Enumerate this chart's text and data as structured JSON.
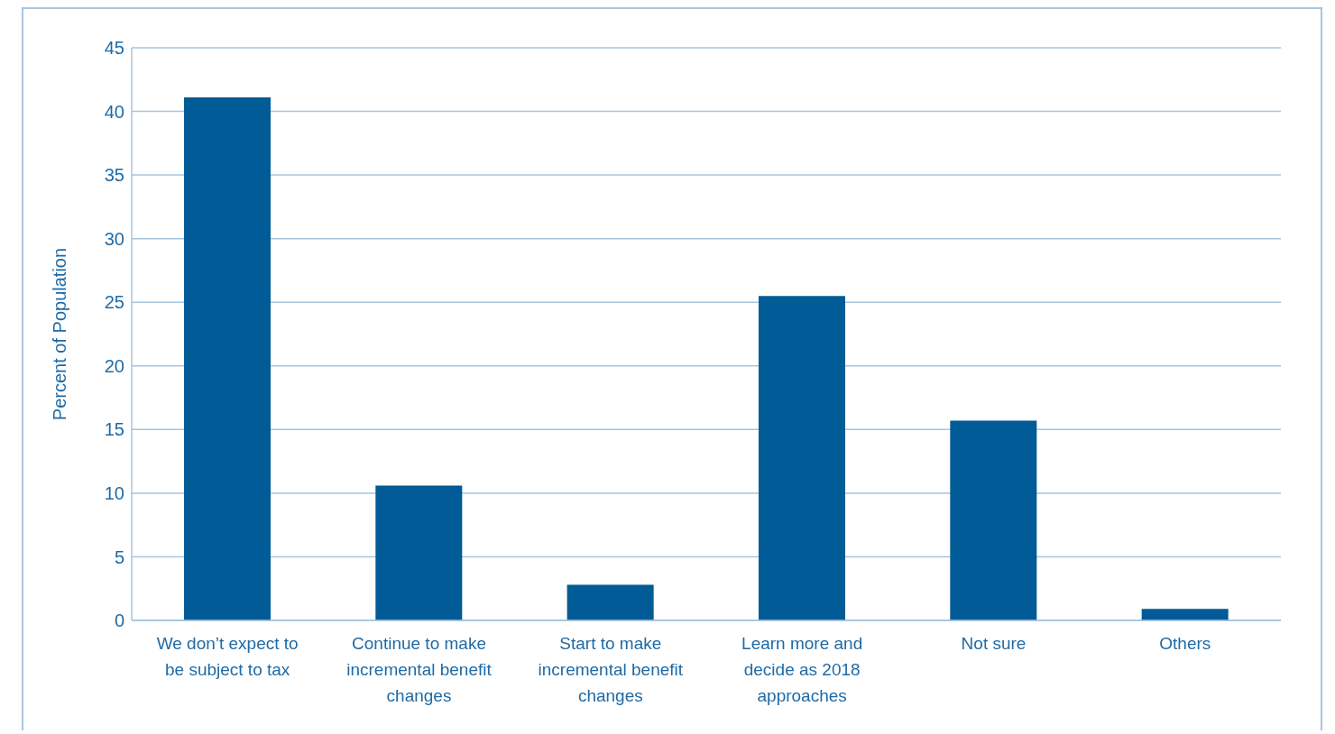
{
  "chart_data": {
    "type": "bar",
    "ylabel": "Percent of Population",
    "categories": [
      "We don’t expect to be subject to tax",
      "Continue to make incremental benefit changes",
      "Start to make incremental benefit changes",
      "Learn more and decide as 2018 approaches",
      "Not sure",
      "Others"
    ],
    "values": [
      41.1,
      10.6,
      2.8,
      25.5,
      15.7,
      0.9
    ],
    "color": "#005b96",
    "ylim": [
      0,
      45
    ],
    "yticks": [
      0,
      5,
      10,
      15,
      20,
      25,
      30,
      35,
      40,
      45
    ],
    "grid": "y"
  }
}
